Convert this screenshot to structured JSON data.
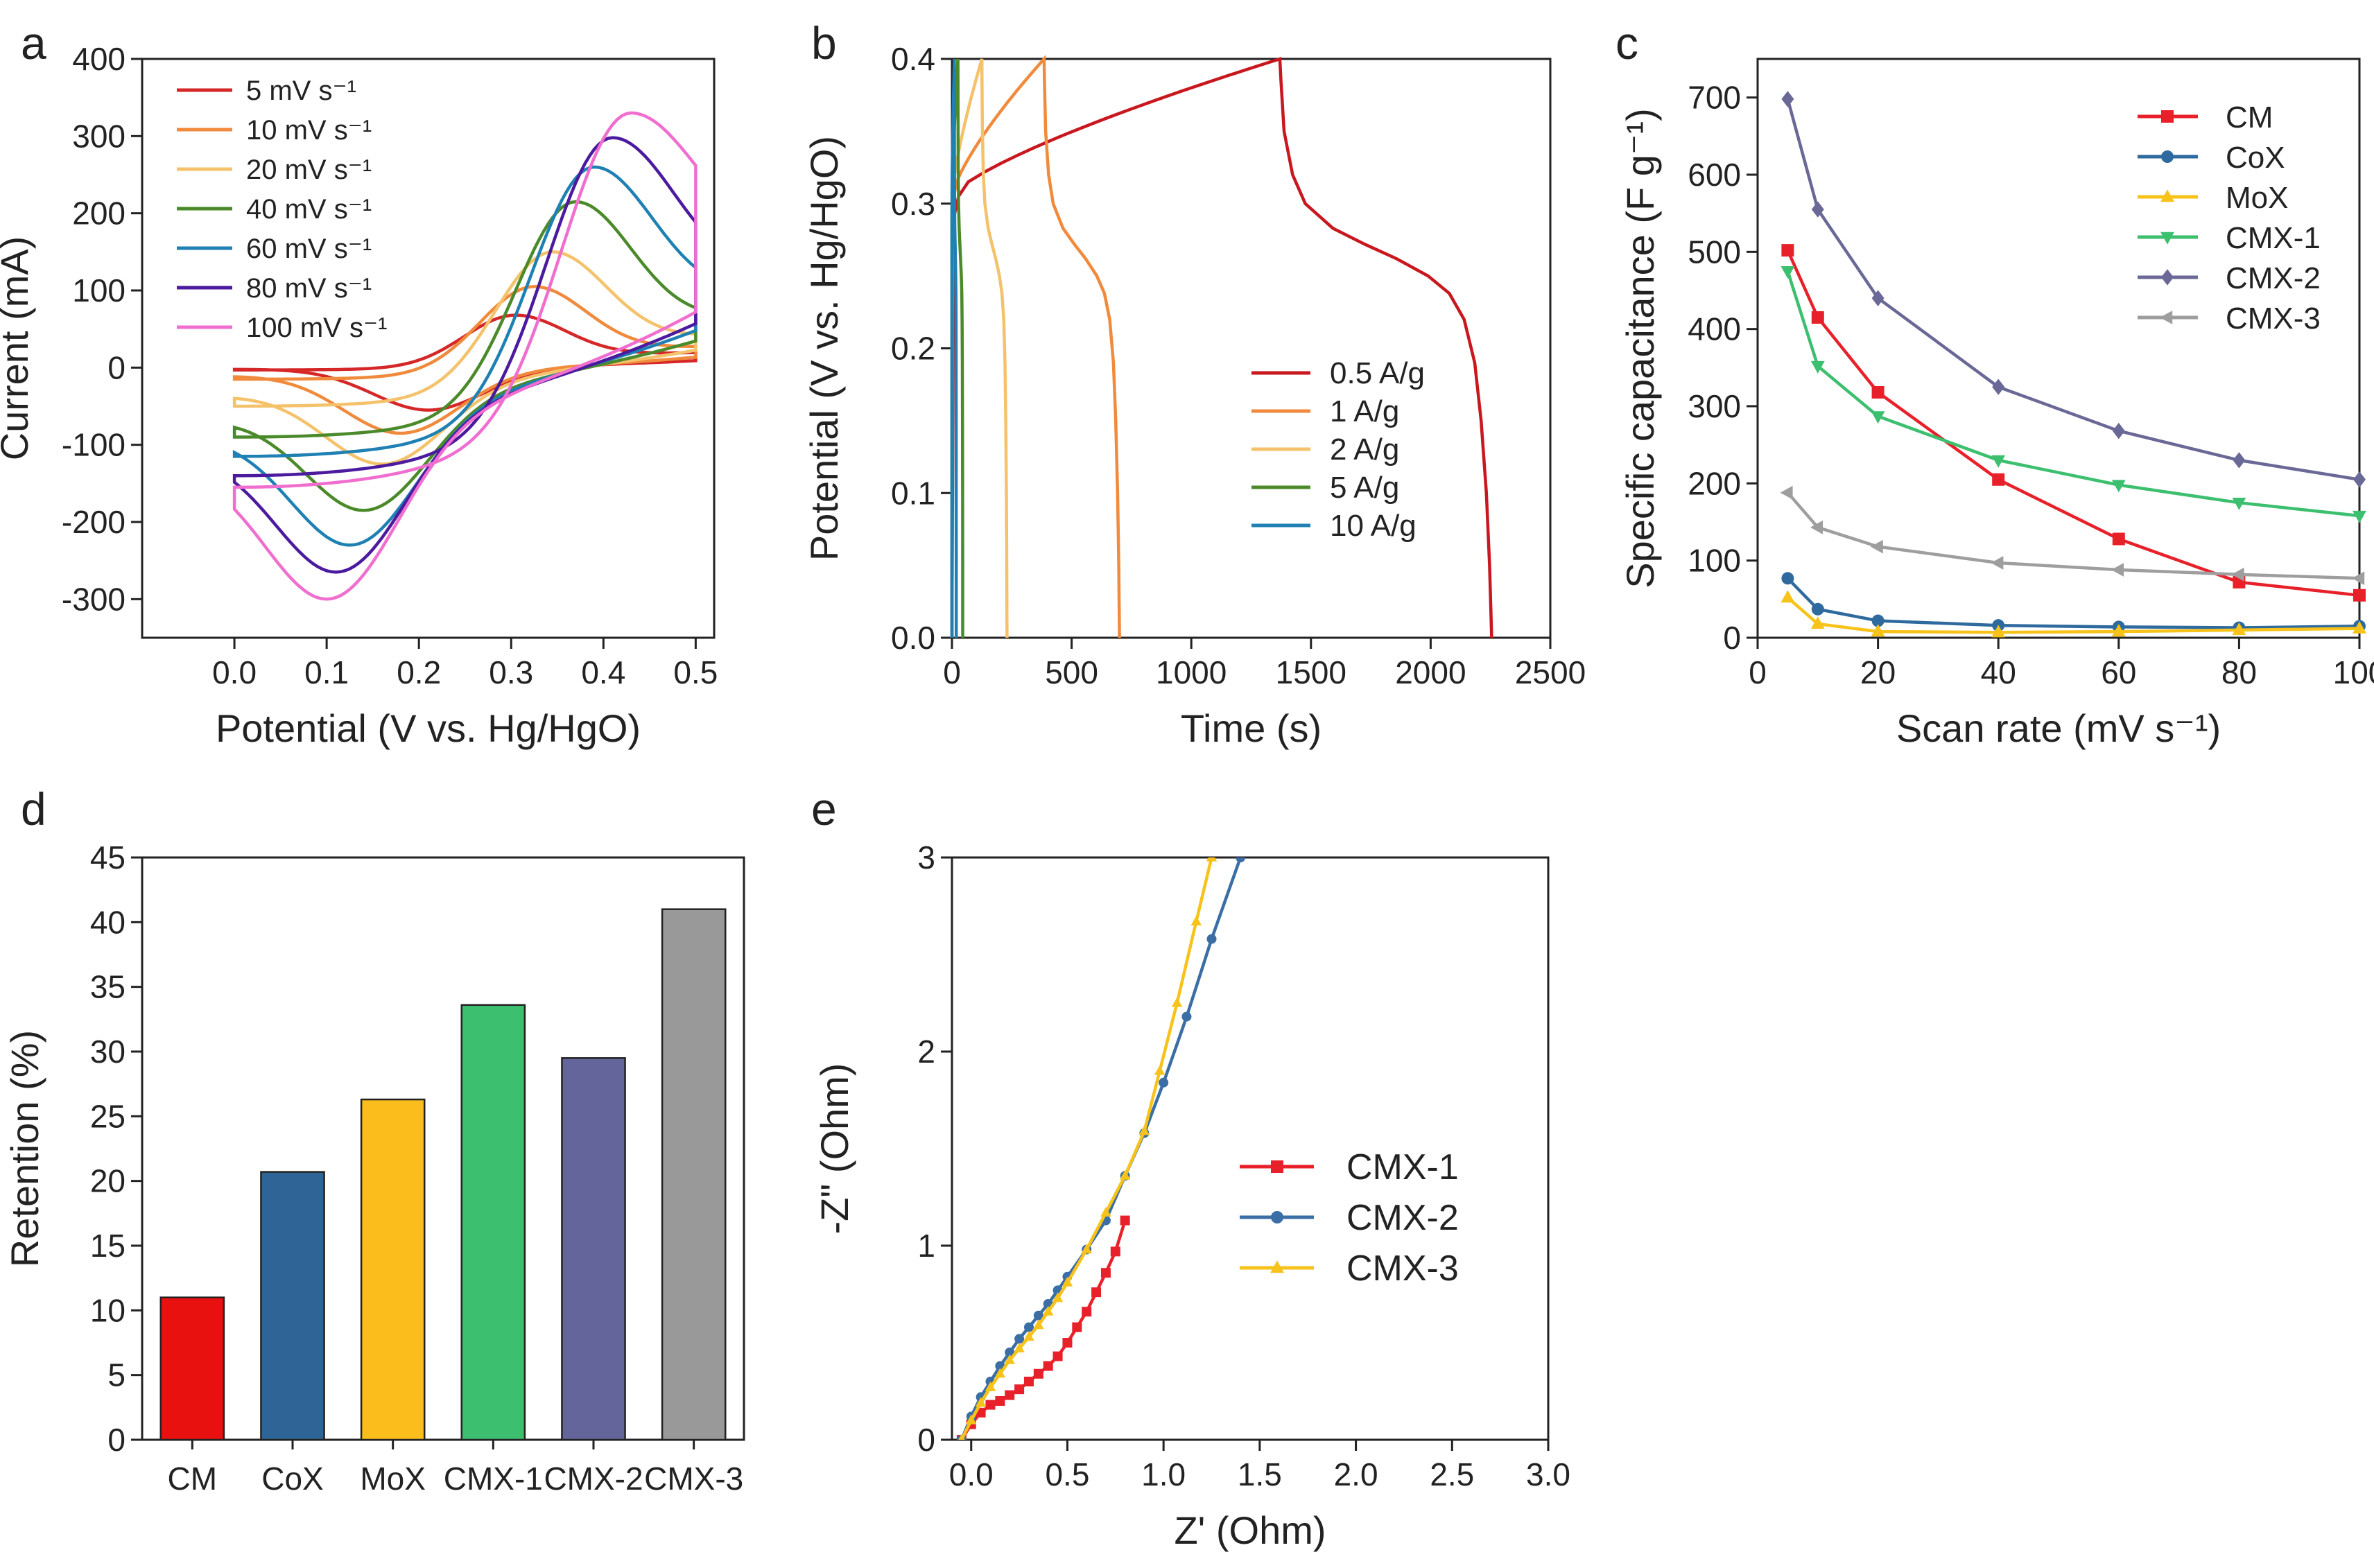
{
  "panels": [
    {
      "id": "a",
      "label": "a",
      "type": "line",
      "xlabel": "Potential (V vs. Hg/HgO)",
      "ylabel": "Current (mA)",
      "xlim": [
        -0.1,
        0.52
      ],
      "ylim": [
        -350,
        400
      ],
      "xticks": [
        0.0,
        0.1,
        0.2,
        0.3,
        0.4,
        0.5
      ],
      "xtick_labels": [
        "0.0",
        "0.1",
        "0.2",
        "0.3",
        "0.4",
        "0.5"
      ],
      "yticks": [
        -300,
        -200,
        -100,
        0,
        100,
        200,
        300,
        400
      ],
      "ytick_labels": [
        "-300",
        "-200",
        "-100",
        "0",
        "100",
        "200",
        "300",
        "400"
      ],
      "legend": "top-left",
      "series": [
        {
          "name": "5 mV s⁻¹",
          "color": "#d62728",
          "peak_anodic": [
            0.305,
            68
          ],
          "peak_cathodic": [
            0.21,
            -55
          ],
          "top_end": 30,
          "bottom_start": -3
        },
        {
          "name": "10 mV s⁻¹",
          "color": "#f08a3c",
          "peak_anodic": [
            0.325,
            105
          ],
          "peak_cathodic": [
            0.18,
            -85
          ],
          "top_end": 45,
          "bottom_start": -15
        },
        {
          "name": "20 mV s⁻¹",
          "color": "#f4c26b",
          "peak_anodic": [
            0.345,
            150
          ],
          "peak_cathodic": [
            0.16,
            -125
          ],
          "top_end": 75,
          "bottom_start": -50
        },
        {
          "name": "40 mV s⁻¹",
          "color": "#4b8a2a",
          "peak_anodic": [
            0.37,
            215
          ],
          "peak_cathodic": [
            0.14,
            -185
          ],
          "top_end": 115,
          "bottom_start": -90
        },
        {
          "name": "60 mV s⁻¹",
          "color": "#1f80b3",
          "peak_anodic": [
            0.39,
            260
          ],
          "peak_cathodic": [
            0.125,
            -230
          ],
          "top_end": 160,
          "bottom_start": -115
        },
        {
          "name": "80 mV s⁻¹",
          "color": "#4b1a9e",
          "peak_anodic": [
            0.41,
            298
          ],
          "peak_cathodic": [
            0.11,
            -265
          ],
          "top_end": 190,
          "bottom_start": -140
        },
        {
          "name": "100 mV s⁻¹",
          "color": "#f06ecf",
          "peak_anodic": [
            0.43,
            330
          ],
          "peak_cathodic": [
            0.1,
            -300
          ],
          "top_end": 240,
          "bottom_start": -155
        }
      ]
    },
    {
      "id": "b",
      "label": "b",
      "type": "line",
      "xlabel": "Time (s)",
      "ylabel": "Potential (V vs. Hg/HgO)",
      "xlim": [
        0,
        2500
      ],
      "ylim": [
        0,
        0.4
      ],
      "xticks": [
        0,
        500,
        1000,
        1500,
        2000,
        2500
      ],
      "xtick_labels": [
        "0",
        "500",
        "1000",
        "1500",
        "2000",
        "2500"
      ],
      "yticks": [
        0.0,
        0.1,
        0.2,
        0.3,
        0.4
      ],
      "ytick_labels": [
        "0.0",
        "0.1",
        "0.2",
        "0.3",
        "0.4"
      ],
      "legend": "center-right",
      "series": [
        {
          "name": "0.5 A/g",
          "color": "#c8171e",
          "charge_end": 1370,
          "discharge_end": 2255
        },
        {
          "name": "1 A/g",
          "color": "#f08a3c",
          "charge_end": 385,
          "discharge_end": 700
        },
        {
          "name": "2 A/g",
          "color": "#f4c26b",
          "charge_end": 125,
          "discharge_end": 230
        },
        {
          "name": "5 A/g",
          "color": "#4b8a2a",
          "charge_end": 25,
          "discharge_end": 45
        },
        {
          "name": "10 A/g",
          "color": "#1f80b3",
          "charge_end": 10,
          "discharge_end": 18
        }
      ]
    },
    {
      "id": "c",
      "label": "c",
      "type": "line",
      "xlabel": "Scan rate (mV s⁻¹)",
      "ylabel": "Specific capacitance (F g⁻¹)",
      "xlim": [
        0,
        100
      ],
      "ylim": [
        0,
        750
      ],
      "xticks": [
        0,
        20,
        40,
        60,
        80,
        100
      ],
      "xtick_labels": [
        "0",
        "20",
        "40",
        "60",
        "80",
        "100"
      ],
      "yticks": [
        0,
        100,
        200,
        300,
        400,
        500,
        600,
        700
      ],
      "ytick_labels": [
        "0",
        "100",
        "200",
        "300",
        "400",
        "500",
        "600",
        "700"
      ],
      "legend": "top-right",
      "x": [
        5,
        10,
        20,
        40,
        60,
        80,
        100
      ],
      "series": [
        {
          "name": "CM",
          "color": "#e8202a",
          "marker": "square",
          "values": [
            502,
            415,
            318,
            205,
            128,
            72,
            55
          ]
        },
        {
          "name": "CoX",
          "color": "#2f6a9e",
          "marker": "circle",
          "values": [
            77,
            37,
            22,
            16,
            14,
            13,
            15
          ]
        },
        {
          "name": "MoX",
          "color": "#f7c31a",
          "marker": "triangle",
          "values": [
            52,
            18,
            8,
            7,
            8,
            10,
            12
          ]
        },
        {
          "name": "CMX-1",
          "color": "#3cbf6e",
          "marker": "triangle-down",
          "values": [
            475,
            352,
            287,
            230,
            198,
            175,
            158
          ]
        },
        {
          "name": "CMX-2",
          "color": "#6a6896",
          "marker": "diamond",
          "values": [
            698,
            555,
            440,
            325,
            268,
            230,
            205
          ]
        },
        {
          "name": "CMX-3",
          "color": "#9e9e9e",
          "marker": "triangle-left",
          "values": [
            188,
            143,
            118,
            97,
            88,
            82,
            77
          ]
        }
      ]
    },
    {
      "id": "d",
      "label": "d",
      "type": "bar",
      "xlabel": "",
      "ylabel": "Retention (%)",
      "ylim": [
        0,
        45
      ],
      "yticks": [
        0,
        5,
        10,
        15,
        20,
        25,
        30,
        35,
        40,
        45
      ],
      "ytick_labels": [
        "0",
        "5",
        "10",
        "15",
        "20",
        "25",
        "30",
        "35",
        "40",
        "45"
      ],
      "categories": [
        "CM",
        "CoX",
        "MoX",
        "CMX-1",
        "CMX-2",
        "CMX-3"
      ],
      "values": [
        11.0,
        20.7,
        26.3,
        33.6,
        29.5,
        41.0
      ],
      "colors": [
        "#e8110f",
        "#2e6496",
        "#fbbd1c",
        "#3cbf6e",
        "#64659a",
        "#999999"
      ]
    },
    {
      "id": "e",
      "label": "e",
      "type": "line",
      "xlabel": "Z' (Ohm)",
      "ylabel": "-Z\" (Ohm)",
      "xlim": [
        -0.1,
        3.0
      ],
      "ylim": [
        0,
        3.0
      ],
      "xticks": [
        0.0,
        0.5,
        1.0,
        1.5,
        2.0,
        2.5,
        3.0
      ],
      "xtick_labels": [
        "0.0",
        "0.5",
        "1.0",
        "1.5",
        "2.0",
        "2.5",
        "3.0"
      ],
      "yticks": [
        0,
        1,
        2,
        3
      ],
      "ytick_labels": [
        "0",
        "1",
        "2",
        "3"
      ],
      "legend": "center",
      "series": [
        {
          "name": "CMX-1",
          "color": "#e8202a",
          "marker": "square",
          "points": [
            [
              -0.05,
              0
            ],
            [
              0,
              0.08
            ],
            [
              0.05,
              0.14
            ],
            [
              0.1,
              0.18
            ],
            [
              0.15,
              0.2
            ],
            [
              0.2,
              0.23
            ],
            [
              0.25,
              0.26
            ],
            [
              0.3,
              0.3
            ],
            [
              0.35,
              0.34
            ],
            [
              0.4,
              0.38
            ],
            [
              0.45,
              0.43
            ],
            [
              0.5,
              0.5
            ],
            [
              0.55,
              0.58
            ],
            [
              0.6,
              0.66
            ],
            [
              0.65,
              0.76
            ],
            [
              0.7,
              0.86
            ],
            [
              0.75,
              0.97
            ],
            [
              0.8,
              1.13
            ]
          ]
        },
        {
          "name": "CMX-2",
          "color": "#3a6ea5",
          "marker": "circle",
          "points": [
            [
              -0.05,
              0
            ],
            [
              0,
              0.12
            ],
            [
              0.05,
              0.22
            ],
            [
              0.1,
              0.3
            ],
            [
              0.15,
              0.38
            ],
            [
              0.2,
              0.45
            ],
            [
              0.25,
              0.52
            ],
            [
              0.3,
              0.58
            ],
            [
              0.35,
              0.64
            ],
            [
              0.4,
              0.7
            ],
            [
              0.45,
              0.77
            ],
            [
              0.5,
              0.84
            ],
            [
              0.6,
              0.98
            ],
            [
              0.7,
              1.13
            ],
            [
              0.8,
              1.36
            ],
            [
              0.9,
              1.58
            ],
            [
              1.0,
              1.84
            ],
            [
              1.12,
              2.18
            ],
            [
              1.25,
              2.58
            ],
            [
              1.4,
              3.0
            ]
          ]
        },
        {
          "name": "CMX-3",
          "color": "#f7c31a",
          "marker": "triangle",
          "points": [
            [
              -0.05,
              0
            ],
            [
              0,
              0.1
            ],
            [
              0.05,
              0.19
            ],
            [
              0.1,
              0.27
            ],
            [
              0.15,
              0.34
            ],
            [
              0.2,
              0.41
            ],
            [
              0.25,
              0.47
            ],
            [
              0.3,
              0.53
            ],
            [
              0.35,
              0.59
            ],
            [
              0.4,
              0.66
            ],
            [
              0.45,
              0.73
            ],
            [
              0.5,
              0.81
            ],
            [
              0.6,
              0.98
            ],
            [
              0.7,
              1.17
            ],
            [
              0.8,
              1.36
            ],
            [
              0.9,
              1.59
            ],
            [
              0.98,
              1.9
            ],
            [
              1.07,
              2.25
            ],
            [
              1.17,
              2.67
            ],
            [
              1.25,
              3.0
            ]
          ]
        }
      ]
    }
  ]
}
